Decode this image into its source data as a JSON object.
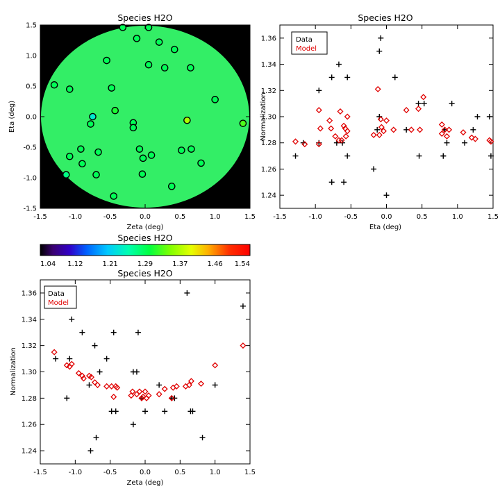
{
  "colors": {
    "data": "#000000",
    "model": "#e00000",
    "background": "#000000"
  },
  "chart_data": [
    {
      "id": "map",
      "type": "scatter",
      "title": "Species H2O",
      "xlabel": "Zeta (deg)",
      "ylabel": "Eta (deg)",
      "xlim": [
        -1.5,
        1.5
      ],
      "ylim": [
        -1.5,
        1.5
      ],
      "xticks": [
        -1.5,
        -1.0,
        -0.5,
        0.0,
        0.5,
        1.0,
        1.5
      ],
      "yticks": [
        -1.5,
        -1.0,
        -0.5,
        0.0,
        0.5,
        1.0,
        1.5
      ],
      "xtick_labels": [
        "-1.5",
        "-1.0",
        "-0.5",
        "0.0",
        "0.5",
        "1.0",
        "1.5"
      ],
      "ytick_labels": [
        "-1.5",
        "-1.0",
        "-0.5",
        "0.0",
        "0.5",
        "1.0",
        "1.5"
      ],
      "field_value": 1.285,
      "points": [
        {
          "zeta": -0.32,
          "eta": 1.46,
          "v": 1.29
        },
        {
          "zeta": 0.05,
          "eta": 1.46,
          "v": 1.29
        },
        {
          "zeta": -0.12,
          "eta": 1.28,
          "v": 1.29
        },
        {
          "zeta": 0.2,
          "eta": 1.22,
          "v": 1.29
        },
        {
          "zeta": 0.42,
          "eta": 1.1,
          "v": 1.29
        },
        {
          "zeta": -0.55,
          "eta": 0.92,
          "v": 1.29
        },
        {
          "zeta": 0.05,
          "eta": 0.85,
          "v": 1.29
        },
        {
          "zeta": 0.28,
          "eta": 0.8,
          "v": 1.29
        },
        {
          "zeta": 0.65,
          "eta": 0.8,
          "v": 1.29
        },
        {
          "zeta": -1.3,
          "eta": 0.52,
          "v": 1.29
        },
        {
          "zeta": -1.08,
          "eta": 0.45,
          "v": 1.29
        },
        {
          "zeta": -0.48,
          "eta": 0.47,
          "v": 1.29
        },
        {
          "zeta": 1.0,
          "eta": 0.28,
          "v": 1.29
        },
        {
          "zeta": -0.43,
          "eta": 0.1,
          "v": 1.31
        },
        {
          "zeta": -0.75,
          "eta": 0.0,
          "v": 1.23
        },
        {
          "zeta": -0.78,
          "eta": -0.12,
          "v": 1.29
        },
        {
          "zeta": -0.17,
          "eta": -0.1,
          "v": 1.29
        },
        {
          "zeta": -0.17,
          "eta": -0.18,
          "v": 1.29
        },
        {
          "zeta": 0.6,
          "eta": -0.06,
          "v": 1.37
        },
        {
          "zeta": 1.4,
          "eta": -0.11,
          "v": 1.33
        },
        {
          "zeta": -0.92,
          "eta": -0.53,
          "v": 1.29
        },
        {
          "zeta": -0.67,
          "eta": -0.58,
          "v": 1.29
        },
        {
          "zeta": -0.08,
          "eta": -0.53,
          "v": 1.29
        },
        {
          "zeta": 0.52,
          "eta": -0.55,
          "v": 1.29
        },
        {
          "zeta": 0.66,
          "eta": -0.53,
          "v": 1.29
        },
        {
          "zeta": -1.08,
          "eta": -0.65,
          "v": 1.29
        },
        {
          "zeta": 0.09,
          "eta": -0.63,
          "v": 1.29
        },
        {
          "zeta": -0.03,
          "eta": -0.68,
          "v": 1.29
        },
        {
          "zeta": -0.9,
          "eta": -0.77,
          "v": 1.29
        },
        {
          "zeta": 0.8,
          "eta": -0.76,
          "v": 1.29
        },
        {
          "zeta": -1.13,
          "eta": -0.95,
          "v": 1.27
        },
        {
          "zeta": -0.7,
          "eta": -0.95,
          "v": 1.29
        },
        {
          "zeta": -0.04,
          "eta": -0.94,
          "v": 1.29
        },
        {
          "zeta": 0.38,
          "eta": -1.14,
          "v": 1.29
        },
        {
          "zeta": -0.45,
          "eta": -1.3,
          "v": 1.29
        }
      ]
    },
    {
      "id": "eta_plot",
      "type": "scatter",
      "title": "Species H2O",
      "xlabel": "Eta (deg)",
      "ylabel": "Normalization",
      "xlim": [
        -1.5,
        1.5
      ],
      "ylim": [
        1.23,
        1.37
      ],
      "xticks": [
        -1.5,
        -1.0,
        -0.5,
        0.0,
        0.5,
        1.0,
        1.5
      ],
      "yticks": [
        1.24,
        1.26,
        1.28,
        1.3,
        1.32,
        1.34,
        1.36
      ],
      "xtick_labels": [
        "-1.5",
        "-1.0",
        "-0.5",
        "0.0",
        "0.5",
        "1.0",
        "1.5"
      ],
      "ytick_labels": [
        "1.24",
        "1.26",
        "1.28",
        "1.30",
        "1.32",
        "1.34",
        "1.36"
      ],
      "legend": {
        "position": "top-left",
        "entries": [
          "Data",
          "Model"
        ]
      },
      "series": [
        {
          "name": "Data",
          "marker": "plus",
          "x": [
            -1.28,
            -1.17,
            -0.95,
            -0.95,
            -0.77,
            -0.77,
            -0.7,
            -0.67,
            -0.62,
            -0.6,
            -0.55,
            -0.55,
            -0.18,
            -0.13,
            -0.1,
            -0.1,
            -0.08,
            0.0,
            0.12,
            0.28,
            0.45,
            0.46,
            0.53,
            0.8,
            0.8,
            0.82,
            0.85,
            0.92,
            1.1,
            1.22,
            1.28,
            1.45,
            1.47
          ],
          "y": [
            1.27,
            1.28,
            1.28,
            1.32,
            1.33,
            1.25,
            1.28,
            1.34,
            1.28,
            1.25,
            1.33,
            1.27,
            1.26,
            1.29,
            1.35,
            1.3,
            1.36,
            1.24,
            1.33,
            1.29,
            1.31,
            1.27,
            1.31,
            1.27,
            1.27,
            1.29,
            1.28,
            1.31,
            1.28,
            1.29,
            1.3,
            1.3,
            1.27
          ]
        },
        {
          "name": "Model",
          "marker": "diamond",
          "x": [
            -1.28,
            -1.15,
            -0.95,
            -0.95,
            -0.93,
            -0.8,
            -0.78,
            -0.72,
            -0.67,
            -0.65,
            -0.63,
            -0.6,
            -0.58,
            -0.57,
            -0.55,
            -0.55,
            -0.18,
            -0.12,
            -0.1,
            -0.08,
            -0.07,
            -0.04,
            0.0,
            0.1,
            0.28,
            0.35,
            0.45,
            0.47,
            0.52,
            0.78,
            0.78,
            0.82,
            0.85,
            0.88,
            1.08,
            1.2,
            1.25,
            1.45,
            1.47
          ],
          "y": [
            1.281,
            1.279,
            1.279,
            1.305,
            1.291,
            1.297,
            1.291,
            1.285,
            1.282,
            1.304,
            1.282,
            1.293,
            1.291,
            1.285,
            1.3,
            1.289,
            1.286,
            1.321,
            1.286,
            1.298,
            1.292,
            1.289,
            1.297,
            1.29,
            1.305,
            1.29,
            1.306,
            1.29,
            1.315,
            1.294,
            1.287,
            1.29,
            1.285,
            1.29,
            1.288,
            1.284,
            1.283,
            1.282,
            1.281
          ]
        }
      ]
    },
    {
      "id": "colorbar",
      "type": "heatmap",
      "title": "Species H2O",
      "range": [
        1.04,
        1.54
      ],
      "tick_labels": [
        "1.04",
        "1.12",
        "1.21",
        "1.29",
        "1.37",
        "1.46",
        "1.54"
      ]
    },
    {
      "id": "zeta_plot",
      "type": "scatter",
      "title": "Species H2O",
      "xlabel": "Zeta (deg)",
      "ylabel": "Normalization",
      "xlim": [
        -1.5,
        1.5
      ],
      "ylim": [
        1.23,
        1.37
      ],
      "xticks": [
        -1.5,
        -1.0,
        -0.5,
        0.0,
        0.5,
        1.0,
        1.5
      ],
      "yticks": [
        1.24,
        1.26,
        1.28,
        1.3,
        1.32,
        1.34,
        1.36
      ],
      "xtick_labels": [
        "-1.5",
        "-1.0",
        "-0.5",
        "0.0",
        "0.5",
        "1.0",
        "1.5"
      ],
      "ytick_labels": [
        "1.24",
        "1.26",
        "1.28",
        "1.30",
        "1.32",
        "1.34",
        "1.36"
      ],
      "legend": {
        "position": "top-left",
        "entries": [
          "Data",
          "Model"
        ]
      },
      "series": [
        {
          "name": "Data",
          "marker": "plus",
          "x": [
            -1.28,
            -1.12,
            -1.08,
            -1.05,
            -0.9,
            -0.8,
            -0.78,
            -0.72,
            -0.7,
            -0.65,
            -0.55,
            -0.48,
            -0.45,
            -0.42,
            -0.17,
            -0.17,
            -0.12,
            -0.1,
            -0.05,
            0.0,
            0.2,
            0.28,
            0.38,
            0.42,
            0.6,
            0.65,
            0.68,
            0.82,
            1.0,
            1.4
          ],
          "y": [
            1.31,
            1.28,
            1.31,
            1.34,
            1.33,
            1.29,
            1.24,
            1.32,
            1.25,
            1.3,
            1.31,
            1.27,
            1.33,
            1.27,
            1.3,
            1.26,
            1.3,
            1.33,
            1.28,
            1.27,
            1.29,
            1.27,
            1.28,
            1.28,
            1.36,
            1.27,
            1.27,
            1.25,
            1.29,
            1.35
          ]
        },
        {
          "name": "Model",
          "marker": "diamond",
          "x": [
            -1.3,
            -1.12,
            -1.08,
            -1.05,
            -0.95,
            -0.9,
            -0.88,
            -0.8,
            -0.77,
            -0.72,
            -0.68,
            -0.55,
            -0.48,
            -0.45,
            -0.42,
            -0.4,
            -0.2,
            -0.18,
            -0.12,
            -0.08,
            -0.05,
            -0.03,
            0.0,
            0.02,
            0.05,
            0.2,
            0.28,
            0.38,
            0.4,
            0.45,
            0.58,
            0.63,
            0.66,
            0.8,
            1.0,
            1.4
          ],
          "y": [
            1.315,
            1.305,
            1.304,
            1.306,
            1.299,
            1.297,
            1.295,
            1.297,
            1.296,
            1.292,
            1.29,
            1.289,
            1.289,
            1.281,
            1.289,
            1.288,
            1.282,
            1.285,
            1.283,
            1.285,
            1.28,
            1.281,
            1.285,
            1.28,
            1.282,
            1.283,
            1.287,
            1.28,
            1.288,
            1.289,
            1.289,
            1.29,
            1.293,
            1.291,
            1.305,
            1.32
          ]
        }
      ]
    }
  ]
}
